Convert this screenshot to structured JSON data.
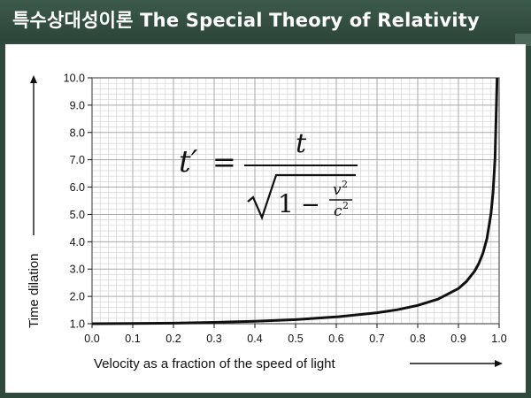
{
  "slide": {
    "title": "특수상대성이론 The Special Theory of Relativity"
  },
  "formula": {
    "lhs": "t′",
    "equals": "=",
    "numerator": "t",
    "one": "1",
    "minus": "−",
    "v": "v",
    "c": "c",
    "exp": "2"
  },
  "chart_data": {
    "type": "line",
    "xlabel": "Velocity as a fraction of the speed of light",
    "ylabel": "Time dilation",
    "xlim": [
      0,
      1
    ],
    "ylim": [
      1,
      10
    ],
    "grid": true,
    "x_ticks": [
      "0.0",
      "0.1",
      "0.2",
      "0.3",
      "0.4",
      "0.5",
      "0.6",
      "0.7",
      "0.8",
      "0.9",
      "1.0"
    ],
    "y_ticks": [
      "1.0",
      "2.0",
      "3.0",
      "4.0",
      "5.0",
      "6.0",
      "7.0",
      "8.0",
      "9.0",
      "10.0"
    ],
    "series": [
      {
        "x": [
          0,
          0.1,
          0.2,
          0.3,
          0.4,
          0.5,
          0.6,
          0.7,
          0.75,
          0.8,
          0.85,
          0.9,
          0.92,
          0.94,
          0.95,
          0.96,
          0.97,
          0.98,
          0.985,
          0.99,
          0.995
        ],
        "y": [
          1.0,
          1.01,
          1.02,
          1.05,
          1.09,
          1.15,
          1.25,
          1.4,
          1.51,
          1.67,
          1.9,
          2.29,
          2.55,
          2.93,
          3.2,
          3.57,
          4.11,
          5.03,
          5.8,
          7.09,
          10.0
        ]
      }
    ]
  }
}
